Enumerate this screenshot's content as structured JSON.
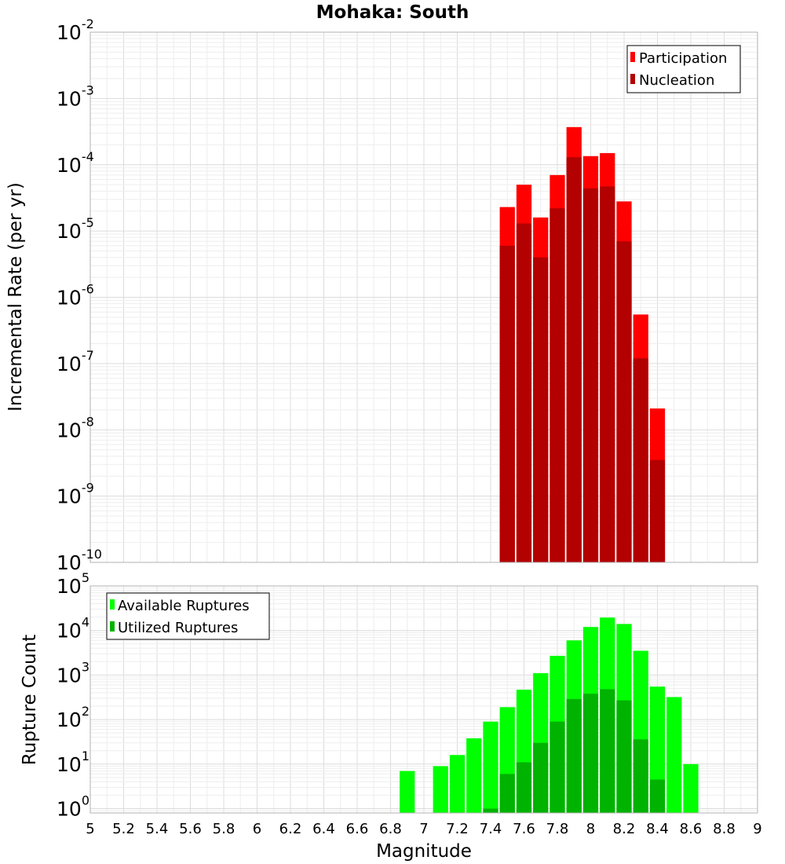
{
  "title": "Mohaka: South",
  "chart_data": [
    {
      "type": "bar",
      "name": "incremental-rate",
      "ylabel": "Incremental Rate (per yr)",
      "xlabel": "",
      "yscale": "log",
      "ylim": [
        1e-10,
        0.01
      ],
      "xlim": [
        5,
        9
      ],
      "y_tick_exponents": [
        -10,
        -9,
        -8,
        -7,
        -6,
        -5,
        -4,
        -3,
        -2
      ],
      "legend_position": "top-right",
      "colors": {
        "participation": "#ff0000",
        "nucleation": "#b30000"
      },
      "x": [
        7.5,
        7.6,
        7.7,
        7.8,
        7.9,
        8.0,
        8.1,
        8.2,
        8.3,
        8.4,
        8.5
      ],
      "series": [
        {
          "name": "Participation",
          "values": [
            2.3e-05,
            5e-05,
            1.6e-05,
            7e-05,
            0.00037,
            0.000135,
            0.00015,
            2.8e-05,
            5.5e-07,
            2.1e-08,
            0
          ]
        },
        {
          "name": "Nucleation",
          "values": [
            6e-06,
            1.3e-05,
            4e-06,
            2.2e-05,
            0.00013,
            4.4e-05,
            4.7e-05,
            7e-06,
            1.2e-07,
            3.5e-09,
            0
          ]
        }
      ]
    },
    {
      "type": "bar",
      "name": "rupture-count",
      "ylabel": "Rupture Count",
      "xlabel": "Magnitude",
      "yscale": "log",
      "ylim": [
        0.8,
        100000.0
      ],
      "xlim": [
        5,
        9
      ],
      "y_tick_exponents": [
        0,
        1,
        2,
        3,
        4,
        5
      ],
      "x_ticks": [
        "5",
        "5.2",
        "5.4",
        "5.6",
        "5.8",
        "6",
        "6.2",
        "6.4",
        "6.6",
        "6.8",
        "7",
        "7.2",
        "7.4",
        "7.6",
        "7.8",
        "8",
        "8.2",
        "8.4",
        "8.6",
        "8.8",
        "9"
      ],
      "legend_position": "top-left",
      "colors": {
        "available": "#00ff00",
        "utilized": "#00b300"
      },
      "x": [
        6.9,
        7.0,
        7.1,
        7.2,
        7.3,
        7.4,
        7.5,
        7.6,
        7.7,
        7.8,
        7.9,
        8.0,
        8.1,
        8.2,
        8.3,
        8.4,
        8.5,
        8.6
      ],
      "series": [
        {
          "name": "Available Ruptures",
          "values": [
            7,
            0,
            9,
            16,
            38,
            90,
            190,
            470,
            1100,
            2700,
            6000,
            12000,
            19500,
            14000,
            3500,
            550,
            320,
            10
          ]
        },
        {
          "name": "Utilized Ruptures",
          "values": [
            0,
            0,
            0,
            0,
            0,
            1,
            6,
            11,
            30,
            90,
            290,
            380,
            480,
            270,
            36,
            4.5,
            0,
            0
          ]
        }
      ]
    }
  ]
}
